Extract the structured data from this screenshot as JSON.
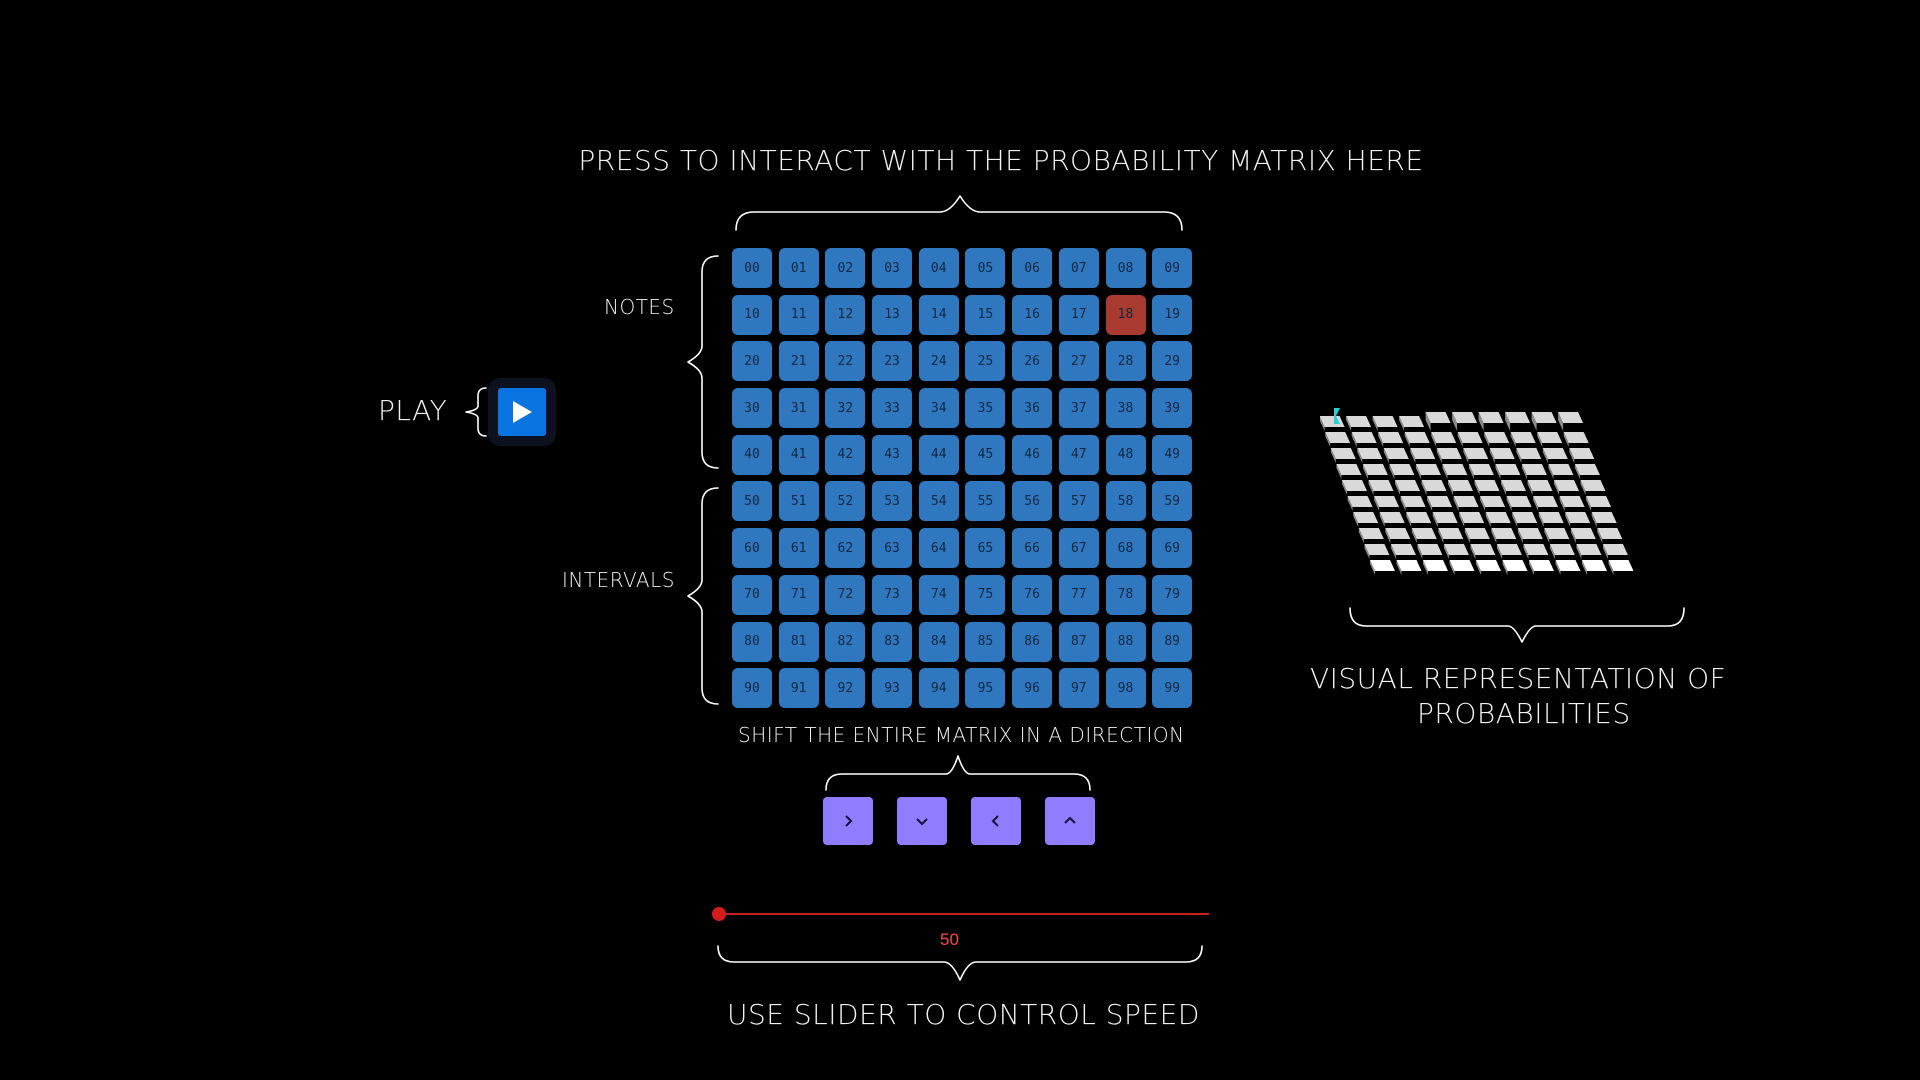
{
  "header": {
    "title": "PRESS TO INTERACT WITH THE PROBABILITY MATRIX HERE"
  },
  "labels": {
    "notes": "NOTES",
    "intervals": "INTERVALS",
    "play": "PLAY",
    "shift": "SHIFT THE ENTIRE MATRIX IN A DIRECTION",
    "visual_line1": "VISUAL REPRESENTATION OF",
    "visual_line2": "PROBABILITIES",
    "speed": "USE SLIDER TO CONTROL SPEED"
  },
  "matrix": {
    "rows": 10,
    "cols": 10,
    "active_cells": [
      "18"
    ],
    "cell_color": "#2f78c0",
    "active_color": "#a83a30"
  },
  "play_button": {
    "icon": "play-icon",
    "color": "#0a74e0"
  },
  "shift_buttons": [
    {
      "name": "shift-right-button",
      "icon": "chevron-right-icon"
    },
    {
      "name": "shift-down-button",
      "icon": "chevron-down-icon"
    },
    {
      "name": "shift-left-button",
      "icon": "chevron-left-icon"
    },
    {
      "name": "shift-up-button",
      "icon": "chevron-up-icon"
    }
  ],
  "slider": {
    "value": "50",
    "fraction": 0.0,
    "accent": "#d41c1c"
  },
  "colors": {
    "background": "#000000",
    "shift_button": "#8f7cff",
    "cube_top": "#d9d9d9",
    "cube_side": "#ffffff",
    "highlight": "#22d3d3"
  }
}
